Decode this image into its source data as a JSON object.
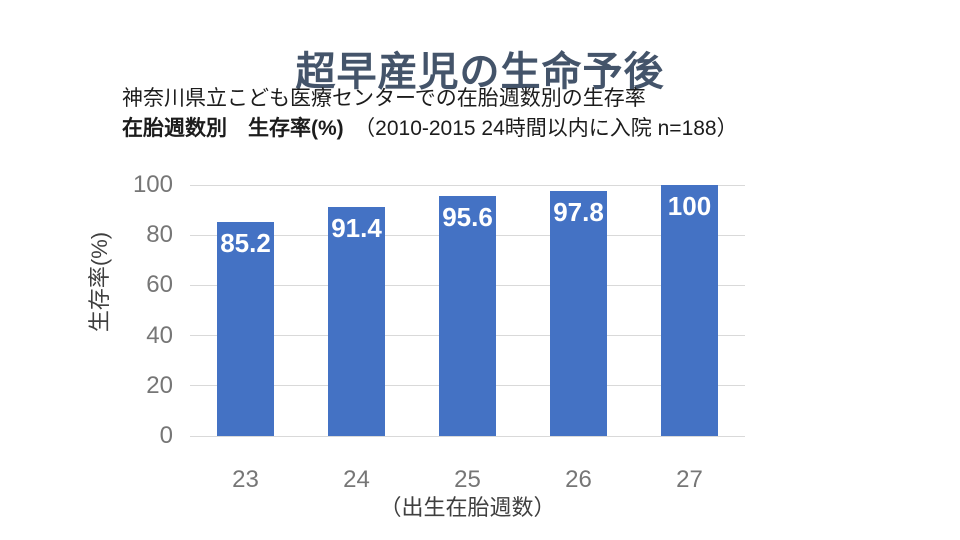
{
  "slide": {
    "title": "超早産児の生命予後",
    "subtitle_line1": "神奈川県立こども医療センターでの在胎週数別の生存率",
    "subtitle_line2_bold": "在胎週数別　生存率(%)",
    "subtitle_line2_rest": "　（2010-2015 24時間以内に入院 n=188）"
  },
  "chart_data": {
    "type": "bar",
    "categories": [
      "23",
      "24",
      "25",
      "26",
      "27"
    ],
    "values": [
      85.2,
      91.4,
      95.6,
      97.8,
      100
    ],
    "data_labels": [
      "85.2",
      "91.4",
      "95.6",
      "97.8",
      "100"
    ],
    "title": "",
    "xlabel": "（出生在胎週数）",
    "ylabel": "生存率(%)",
    "ylim": [
      0,
      100
    ],
    "yticks": [
      0,
      20,
      40,
      60,
      80,
      100
    ],
    "grid": true,
    "legend": false,
    "colors": {
      "bar": "#4472C4",
      "bar_label": "#FFFFFF",
      "gridline": "#D9D9D9",
      "tick_label": "#767676",
      "axis_title": "#3F3F3F",
      "slide_title": "#44546A"
    }
  }
}
